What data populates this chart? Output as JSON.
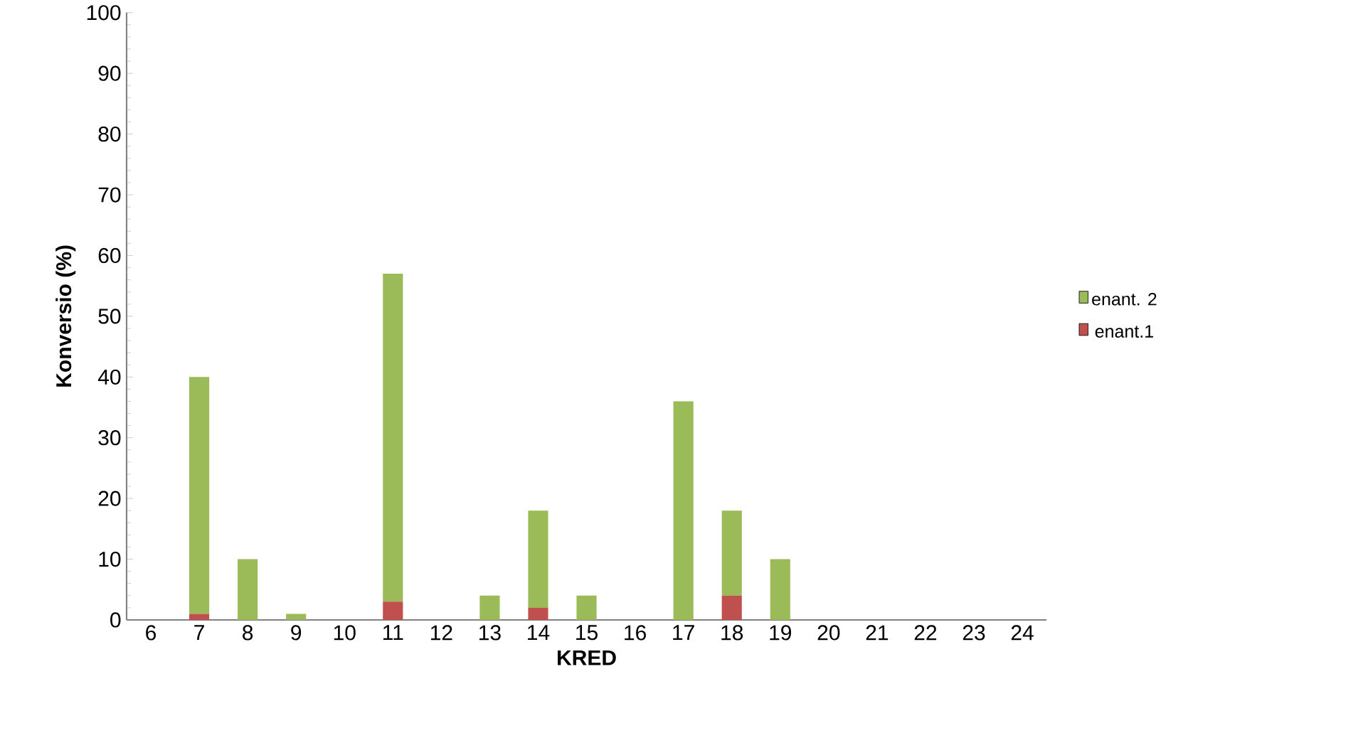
{
  "chart_data": {
    "type": "bar",
    "stacked": true,
    "xlabel": "KRED",
    "ylabel": "Konversio (%)",
    "categories": [
      "6",
      "7",
      "8",
      "9",
      "10",
      "11",
      "12",
      "13",
      "14",
      "15",
      "16",
      "17",
      "18",
      "19",
      "20",
      "21",
      "22",
      "23",
      "24"
    ],
    "series": [
      {
        "name": "enant.1",
        "color": "#c0504d",
        "values": [
          0,
          1,
          0,
          0,
          0,
          3,
          0,
          0,
          2,
          0,
          0,
          0,
          4,
          0,
          0,
          0,
          0,
          0,
          0
        ]
      },
      {
        "name": "enant. 2",
        "color": "#9bbb59",
        "values": [
          0,
          39,
          10,
          1,
          0,
          54,
          0,
          4,
          16,
          4,
          0,
          36,
          14,
          10,
          0,
          0,
          0,
          0,
          0
        ]
      }
    ],
    "ylim": [
      0,
      100
    ],
    "yticks": [
      0,
      10,
      20,
      30,
      40,
      50,
      60,
      70,
      80,
      90,
      100
    ],
    "grid": false,
    "legend": "right"
  }
}
